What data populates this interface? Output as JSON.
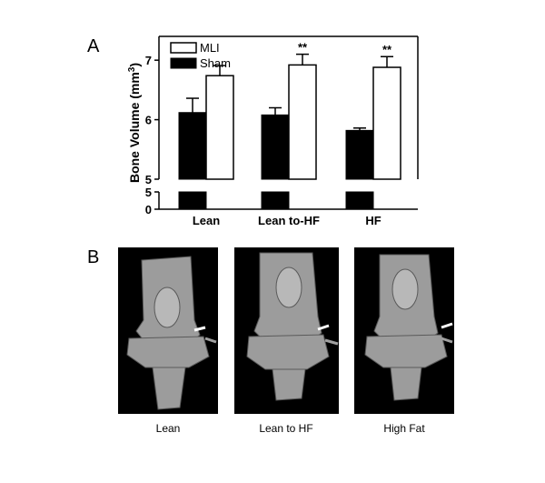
{
  "panel_a_letter": "A",
  "panel_b_letter": "B",
  "chart_data": {
    "type": "bar",
    "title": "",
    "xlabel": "",
    "ylabel": "Bone Volume (mm",
    "ylabel_superscript": "3",
    "ylabel_close": ")",
    "categories": [
      "Lean",
      "Lean to-HF",
      "HF"
    ],
    "series": [
      {
        "name": "Sham",
        "color": "#000000",
        "values": [
          6.12,
          6.08,
          5.82
        ],
        "errors": [
          0.24,
          0.12,
          0.04
        ]
      },
      {
        "name": "MLI",
        "color": "#ffffff",
        "values": [
          6.74,
          6.92,
          6.88
        ],
        "errors": [
          0.17,
          0.18,
          0.18
        ]
      }
    ],
    "significance": [
      "",
      "**",
      "**"
    ],
    "y_axis_break": {
      "lower_range": [
        0,
        5
      ],
      "upper_range": [
        5,
        7.4
      ]
    },
    "lower_ticks": [
      "0",
      "5"
    ],
    "upper_ticks": [
      "5",
      "6",
      "7"
    ],
    "legend_position": "top-left",
    "grid": false
  },
  "panel_b": {
    "images": [
      {
        "caption": "Lean",
        "icon": "knee-ct-scan-image"
      },
      {
        "caption": "Lean to HF",
        "icon": "knee-ct-scan-image"
      },
      {
        "caption": "High Fat",
        "icon": "knee-ct-scan-image"
      }
    ],
    "arrow_colors": {
      "white": "#ffffff",
      "gray": "#a0a0a0"
    }
  }
}
